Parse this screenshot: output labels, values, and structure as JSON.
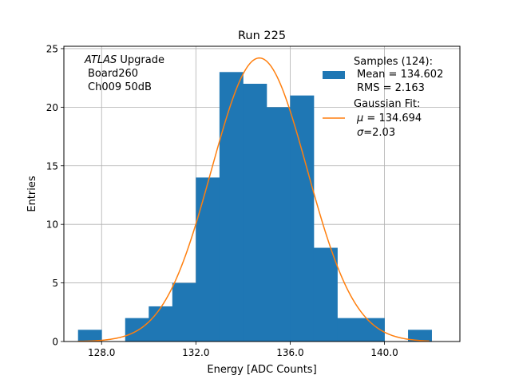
{
  "chart_data": {
    "type": "bar",
    "title": "Run 225",
    "xlabel": "Energy [ADC Counts]",
    "ylabel": "Entries",
    "xlim": [
      126.4,
      143.2
    ],
    "ylim": [
      0,
      25.2
    ],
    "xticks": [
      128.0,
      132.0,
      136.0,
      140.0
    ],
    "xtick_labels": [
      "128.0",
      "132.0",
      "136.0",
      "140.0"
    ],
    "yticks": [
      0,
      5,
      10,
      15,
      20,
      25
    ],
    "ytick_labels": [
      "0",
      "5",
      "10",
      "15",
      "20",
      "25"
    ],
    "grid": true,
    "legend_position": "top-right",
    "annotation": {
      "italic": "ATLAS",
      "line1_rest": " Upgrade",
      "line2": "Board260",
      "line3": "Ch009 50dB"
    },
    "bin_width": 1.0,
    "bins": [
      {
        "x0": 127,
        "count": 1
      },
      {
        "x0": 128,
        "count": 0
      },
      {
        "x0": 129,
        "count": 2
      },
      {
        "x0": 130,
        "count": 3
      },
      {
        "x0": 131,
        "count": 5
      },
      {
        "x0": 132,
        "count": 14
      },
      {
        "x0": 133,
        "count": 23
      },
      {
        "x0": 134,
        "count": 22
      },
      {
        "x0": 135,
        "count": 20
      },
      {
        "x0": 136,
        "count": 21
      },
      {
        "x0": 137,
        "count": 8
      },
      {
        "x0": 138,
        "count": 2
      },
      {
        "x0": 139,
        "count": 2
      },
      {
        "x0": 140,
        "count": 0
      },
      {
        "x0": 141,
        "count": 1
      }
    ],
    "fit": {
      "mu": 134.694,
      "sigma": 2.03,
      "amplitude": 24.2,
      "x_range": [
        127.0,
        141.9
      ]
    },
    "legend": {
      "samples_title": "Samples (124):",
      "samples_mean": "Mean = 134.602",
      "samples_rms": "RMS = 2.163",
      "fit_title": "Gaussian Fit:",
      "fit_mu_value": " = 134.694",
      "fit_sigma_value": "=2.03"
    },
    "colors": {
      "hist": "#1f77b4",
      "fit": "#ff7f0e",
      "grid": "#b0b0b0"
    }
  }
}
